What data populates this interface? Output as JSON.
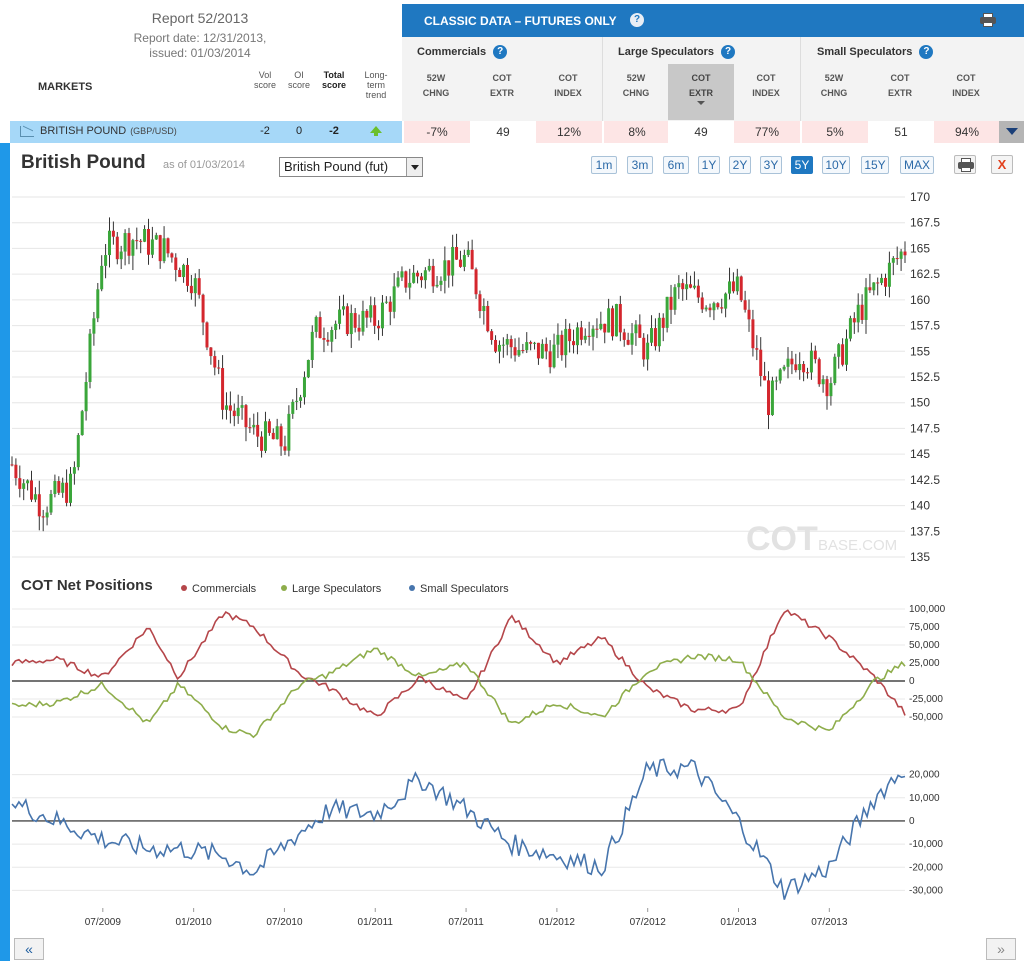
{
  "report": {
    "title": "Report 52/2013",
    "date": "Report date: 12/31/2013,",
    "issued": "issued: 01/03/2014"
  },
  "markets_label": "MARKETS",
  "score_headers": {
    "vol": [
      "Vol",
      "score"
    ],
    "oi": [
      "OI",
      "score"
    ],
    "total": [
      "Total",
      "score"
    ],
    "trend": [
      "Long-",
      "term",
      "trend"
    ]
  },
  "classic": {
    "title": "CLASSIC DATA – FUTURES ONLY",
    "help": "?"
  },
  "groups": [
    {
      "name": "Commercials",
      "cols": [
        [
          "52W",
          "CHNG"
        ],
        [
          "COT",
          "EXTR"
        ],
        [
          "COT",
          "INDEX"
        ]
      ]
    },
    {
      "name": "Large Speculators",
      "cols": [
        [
          "52W",
          "CHNG"
        ],
        [
          "COT",
          "EXTR"
        ],
        [
          "COT",
          "INDEX"
        ]
      ]
    },
    {
      "name": "Small Speculators",
      "cols": [
        [
          "52W",
          "CHNG"
        ],
        [
          "COT",
          "EXTR"
        ],
        [
          "COT",
          "INDEX"
        ]
      ]
    }
  ],
  "row": {
    "market": "BRITISH POUND",
    "pair": "(GBP/USD)",
    "vol_score": "-2",
    "oi_score": "0",
    "total_score": "-2",
    "trend": "up-arrow-icon",
    "values": [
      "-7%",
      "49",
      "12%",
      "8%",
      "49",
      "77%",
      "5%",
      "51",
      "94%"
    ]
  },
  "chart_header": {
    "title": "British Pound",
    "asof": "as of 01/03/2014",
    "select": "British Pound (fut)",
    "ranges": [
      "1m",
      "3m",
      "6m",
      "1Y",
      "2Y",
      "3Y",
      "5Y",
      "10Y",
      "15Y",
      "MAX"
    ],
    "active_range": "5Y",
    "close": "X"
  },
  "watermark": {
    "big": "COT",
    "small": "BASE.COM"
  },
  "cot_title": "COT Net Positions",
  "legend": [
    {
      "name": "Commercials",
      "color": "#b5464a"
    },
    {
      "name": "Large Speculators",
      "color": "#8ead4b"
    },
    {
      "name": "Small Speculators",
      "color": "#4775ad"
    }
  ],
  "nav": {
    "back": "«",
    "forward": "»"
  },
  "chart_data": [
    {
      "type": "candlestick",
      "title": "British Pound",
      "ylim": [
        135,
        170
      ],
      "yticks": [
        "170",
        "167.5",
        "165",
        "162.5",
        "160",
        "157.5",
        "155",
        "152.5",
        "150",
        "147.5",
        "145",
        "142.5",
        "140",
        "137.5",
        "135"
      ],
      "x_range": [
        "01/2009",
        "12/2013"
      ],
      "series": [
        {
          "name": "close_approx",
          "x": [
            "01/2009",
            "03/2009",
            "05/2009",
            "07/2009",
            "09/2009",
            "11/2009",
            "01/2010",
            "03/2010",
            "05/2010",
            "07/2010",
            "09/2010",
            "11/2010",
            "01/2011",
            "03/2011",
            "05/2011",
            "07/2011",
            "09/2011",
            "11/2011",
            "01/2012",
            "03/2012",
            "05/2012",
            "07/2012",
            "09/2012",
            "11/2012",
            "01/2013",
            "03/2013",
            "05/2013",
            "07/2013",
            "09/2013",
            "11/2013",
            "12/2013"
          ],
          "values": [
            144,
            140,
            142,
            165,
            166,
            165,
            162,
            150,
            147,
            146,
            157,
            158,
            158,
            162,
            163,
            164,
            156,
            155,
            155,
            158,
            158,
            155,
            161,
            160,
            161,
            150,
            155,
            152,
            159,
            163,
            165
          ]
        }
      ]
    },
    {
      "type": "line",
      "title": "COT Net Positions",
      "ylim": [
        -75000,
        100000
      ],
      "yticks": [
        "100,000",
        "75,000",
        "50,000",
        "25,000",
        "0",
        "-25,000",
        "-50,000"
      ],
      "x_range": [
        "01/2009",
        "12/2013"
      ],
      "series": [
        {
          "name": "Commercials",
          "x": [
            "01/2009",
            "04/2009",
            "07/2009",
            "10/2009",
            "12/2009",
            "03/2010",
            "05/2010",
            "08/2010",
            "10/2010",
            "01/2011",
            "04/2011",
            "07/2011",
            "10/2011",
            "01/2012",
            "04/2012",
            "07/2012",
            "10/2012",
            "01/2013",
            "04/2013",
            "07/2013",
            "10/2013",
            "12/2013"
          ],
          "values": [
            25000,
            30000,
            5000,
            75000,
            5000,
            95000,
            75000,
            10000,
            -10000,
            -50000,
            5000,
            -30000,
            90000,
            25000,
            60000,
            -10000,
            -40000,
            -40000,
            100000,
            60000,
            5000,
            -45000
          ]
        },
        {
          "name": "Large Speculators",
          "x": [
            "01/2009",
            "04/2009",
            "07/2009",
            "10/2009",
            "12/2009",
            "03/2010",
            "05/2010",
            "08/2010",
            "10/2010",
            "01/2011",
            "04/2011",
            "07/2011",
            "10/2011",
            "01/2012",
            "04/2012",
            "07/2012",
            "10/2012",
            "01/2013",
            "04/2013",
            "07/2013",
            "10/2013",
            "12/2013"
          ],
          "values": [
            -35000,
            -30000,
            -5000,
            -60000,
            -5000,
            -65000,
            -75000,
            -5000,
            10000,
            45000,
            5000,
            25000,
            -60000,
            -30000,
            -50000,
            15000,
            35000,
            30000,
            -50000,
            -70000,
            0,
            25000
          ]
        }
      ]
    },
    {
      "type": "line",
      "ylim": [
        -35000,
        25000
      ],
      "yticks": [
        "20,000",
        "10,000",
        "0",
        "-10,000",
        "-20,000",
        "-30,000"
      ],
      "xticks": [
        "07/2009",
        "01/2010",
        "07/2010",
        "01/2011",
        "07/2011",
        "01/2012",
        "07/2012",
        "01/2013",
        "07/2013"
      ],
      "x_range": [
        "01/2009",
        "12/2013"
      ],
      "series": [
        {
          "name": "Small Speculators",
          "x": [
            "01/2009",
            "04/2009",
            "07/2009",
            "10/2009",
            "12/2009",
            "03/2010",
            "05/2010",
            "08/2010",
            "10/2010",
            "01/2011",
            "04/2011",
            "07/2011",
            "10/2011",
            "01/2012",
            "04/2012",
            "07/2012",
            "10/2012",
            "01/2013",
            "04/2013",
            "07/2013",
            "10/2013",
            "12/2013"
          ],
          "values": [
            8000,
            0,
            -8000,
            -12000,
            -12000,
            -15000,
            -22000,
            -5000,
            5000,
            3000,
            18000,
            5000,
            -10000,
            -15000,
            -20000,
            22000,
            23000,
            0,
            -30000,
            -20000,
            10000,
            23000
          ]
        }
      ]
    }
  ]
}
